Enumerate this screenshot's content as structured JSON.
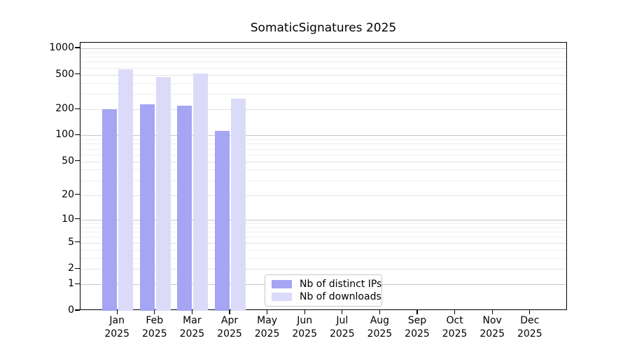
{
  "chart_data": {
    "type": "bar",
    "title": "SomaticSignatures 2025",
    "categories": [
      "Jan",
      "Feb",
      "Mar",
      "Apr",
      "May",
      "Jun",
      "Jul",
      "Aug",
      "Sep",
      "Oct",
      "Nov",
      "Dec"
    ],
    "x_tick_year": "2025",
    "series": [
      {
        "name": "Nb of distinct IPs",
        "color": "#a5a5f3",
        "values": [
          200,
          227,
          218,
          113,
          null,
          null,
          null,
          null,
          null,
          null,
          null,
          null
        ]
      },
      {
        "name": "Nb of downloads",
        "color": "#dbdbf9",
        "values": [
          570,
          465,
          515,
          265,
          null,
          null,
          null,
          null,
          null,
          null,
          null,
          null
        ]
      }
    ],
    "ylabel": "",
    "xlabel": "",
    "yscale": "log10(value+1)",
    "y_axis": {
      "tick_values": [
        0,
        1,
        2,
        5,
        10,
        20,
        50,
        100,
        200,
        500,
        1000
      ],
      "tick_labels": [
        "0",
        "1",
        "2",
        "5",
        "10",
        "20",
        "50",
        "100",
        "200",
        "500",
        "1000"
      ],
      "decade_values": [
        1,
        10,
        100,
        1000
      ],
      "minor_gridline_values": [
        3,
        4,
        6,
        7,
        8,
        9,
        30,
        40,
        60,
        70,
        80,
        90,
        300,
        400,
        600,
        700,
        800,
        900
      ]
    },
    "legend": {
      "position": "lower center-left",
      "items": [
        {
          "label": "Nb of distinct IPs",
          "color": "#a5a5f3"
        },
        {
          "label": "Nb of downloads",
          "color": "#dbdbf9"
        }
      ]
    },
    "grid": "on",
    "colors": {
      "grid_decade": "#c8c8c8",
      "grid_major": "#e2e2e2",
      "grid_minor": "#efefef",
      "axis": "#000000",
      "legend_border": "#c8c8c8",
      "background": "#ffffff"
    }
  }
}
